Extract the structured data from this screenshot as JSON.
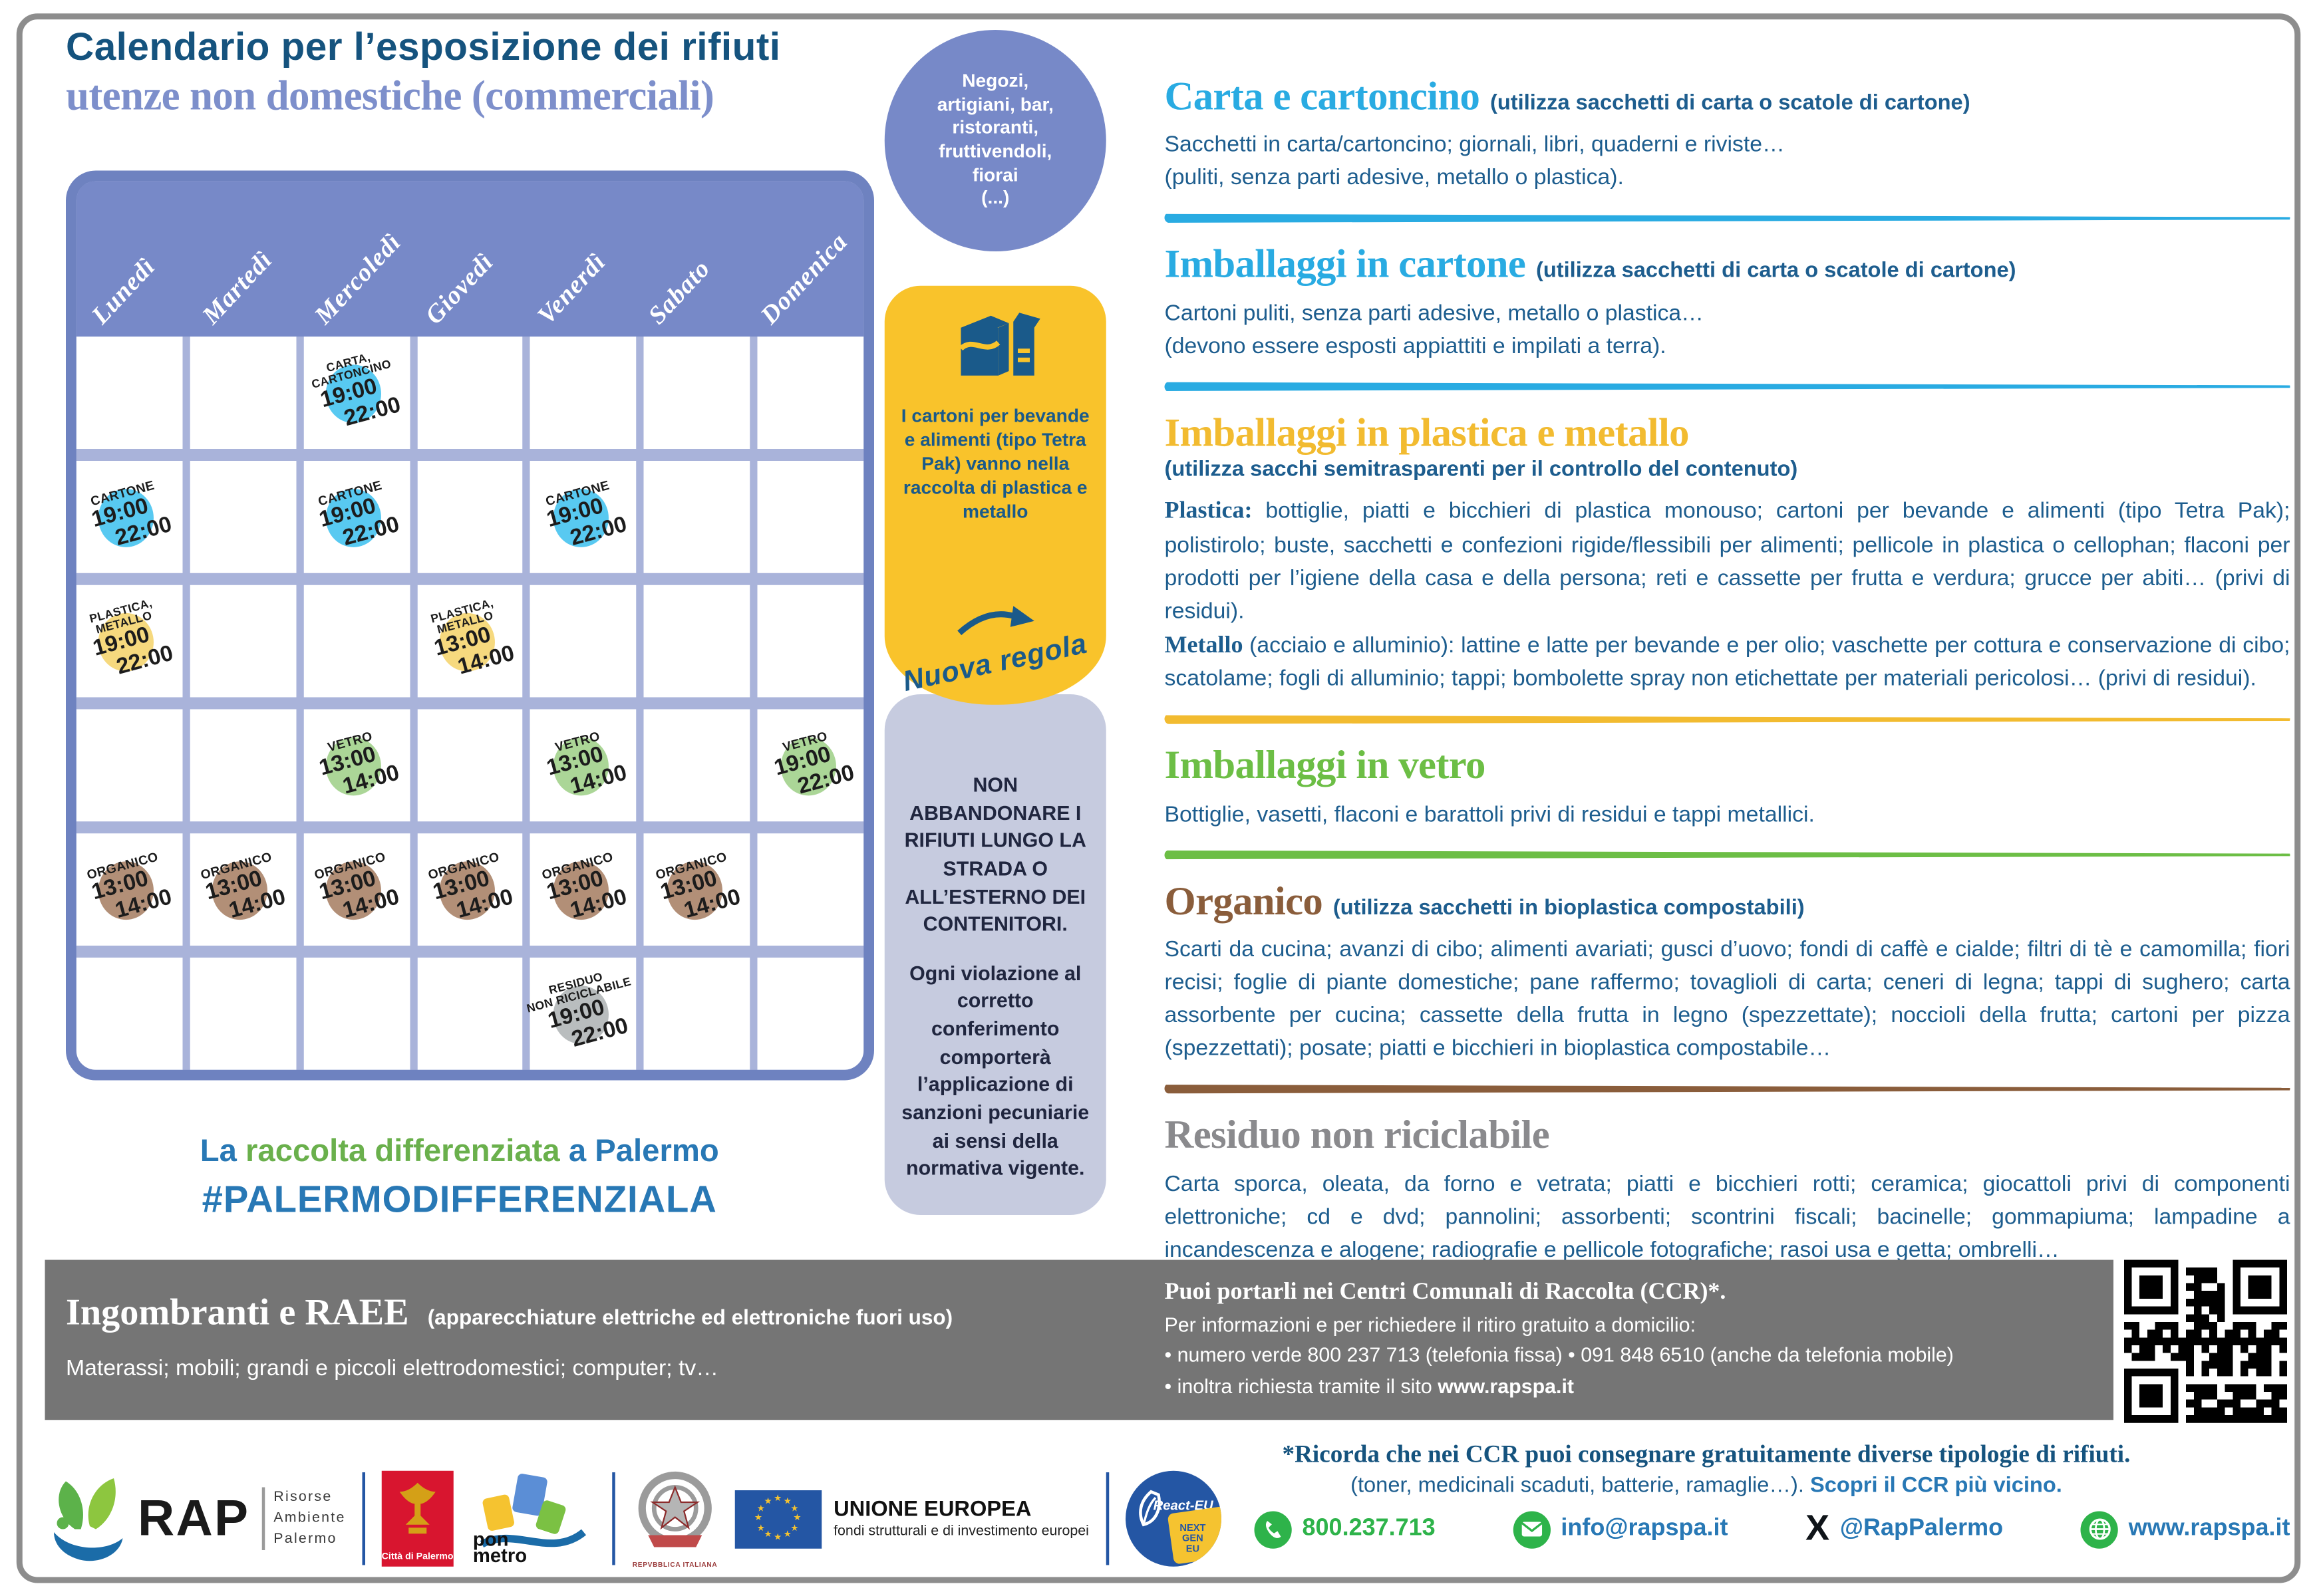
{
  "title": {
    "line1": "Calendario per l’esposizione dei rifiuti",
    "line2": "utenze non domestiche (commerciali)"
  },
  "calendar": {
    "days": [
      "Lunedì",
      "Martedì",
      "Mercoledì",
      "Giovedì",
      "Venerdì",
      "Sabato",
      "Domenica"
    ],
    "rows": [
      [
        null,
        null,
        {
          "label": "CARTA,\nCARTONCINO",
          "t1": "19:00",
          "t2": "22:00",
          "circle": "#58c9f1"
        },
        null,
        null,
        null,
        null
      ],
      [
        {
          "label": "CARTONE",
          "t1": "19:00",
          "t2": "22:00",
          "circle": "#58c9f1"
        },
        null,
        {
          "label": "CARTONE",
          "t1": "19:00",
          "t2": "22:00",
          "circle": "#58c9f1"
        },
        null,
        {
          "label": "CARTONE",
          "t1": "19:00",
          "t2": "22:00",
          "circle": "#58c9f1"
        },
        null,
        null
      ],
      [
        {
          "label": "PLASTICA,\nMETALLO",
          "t1": "19:00",
          "t2": "22:00",
          "circle": "#f6d97e"
        },
        null,
        null,
        {
          "label": "PLASTICA,\nMETALLO",
          "t1": "13:00",
          "t2": "14:00",
          "circle": "#f6d97e"
        },
        null,
        null,
        null
      ],
      [
        null,
        null,
        {
          "label": "VETRO",
          "t1": "13:00",
          "t2": "14:00",
          "circle": "#abd697"
        },
        null,
        {
          "label": "VETRO",
          "t1": "13:00",
          "t2": "14:00",
          "circle": "#abd697"
        },
        null,
        {
          "label": "VETRO",
          "t1": "19:00",
          "t2": "22:00",
          "circle": "#abd697"
        }
      ],
      [
        {
          "label": "ORGANICO",
          "t1": "13:00",
          "t2": "14:00",
          "circle": "#b28f77"
        },
        {
          "label": "ORGANICO",
          "t1": "13:00",
          "t2": "14:00",
          "circle": "#b28f77"
        },
        {
          "label": "ORGANICO",
          "t1": "13:00",
          "t2": "14:00",
          "circle": "#b28f77"
        },
        {
          "label": "ORGANICO",
          "t1": "13:00",
          "t2": "14:00",
          "circle": "#b28f77"
        },
        {
          "label": "ORGANICO",
          "t1": "13:00",
          "t2": "14:00",
          "circle": "#b28f77"
        },
        {
          "label": "ORGANICO",
          "t1": "13:00",
          "t2": "14:00",
          "circle": "#b28f77"
        },
        null
      ],
      [
        null,
        null,
        null,
        null,
        {
          "label": "RESIDUO\nNON RICICLABILE",
          "t1": "19:00",
          "t2": "22:00",
          "circle": "#b9bdbe"
        },
        null,
        null
      ]
    ],
    "tagline": {
      "pre": "La ",
      "highlight": "raccolta differenziata",
      "post": " a Palermo"
    },
    "hashtag": "#PALERMODIFFERENZIALA"
  },
  "middle": {
    "audience": "Negozi,\nartigiani, bar,\nristoranti,\nfruttivendoli,\nfiorai\n(...)",
    "tetra_text": "I cartoni per bevande e alimenti (tipo Tetra Pak) vanno nella raccolta di plastica e metallo",
    "nuova_regola": "Nuova regola",
    "warning1": "NON ABBANDONARE I RIFIUTI LUNGO LA STRADA O ALL’ESTERNO DEI CONTENITORI.",
    "warning2": "Ogni violazione al corretto conferimento comporterà l’applicazione di sanzioni pecuniarie ai sensi della normativa vigente."
  },
  "sections": [
    {
      "color": "#29abe2",
      "title": "Carta e cartoncino",
      "subtitle": "(utilizza sacchetti di carta o scatole di cartone)",
      "subtitle_inline": true,
      "justify": false,
      "body": [
        {
          "lead": null,
          "text": "Sacchetti in carta/cartoncino; giornali, libri, quaderni e riviste…\n(puliti, senza parti adesive, metallo o plastica)."
        }
      ],
      "divider": "#29abe2"
    },
    {
      "color": "#29abe2",
      "title": "Imballaggi in cartone",
      "subtitle": "(utilizza sacchetti di carta o scatole di cartone)",
      "subtitle_inline": true,
      "justify": false,
      "body": [
        {
          "lead": null,
          "text": "Cartoni puliti, senza parti adesive, metallo o plastica…\n(devono essere esposti appiattiti e impilati a terra)."
        }
      ],
      "divider": "#29abe2"
    },
    {
      "color": "#f2bb30",
      "title": "Imballaggi in plastica e metallo",
      "subtitle": "(utilizza sacchi semitrasparenti per il controllo del contenuto)",
      "subtitle_inline": false,
      "justify": true,
      "body": [
        {
          "lead": "Plastica:",
          "text": " bottiglie, piatti e bicchieri di plastica monouso; cartoni per bevande e alimenti (tipo Tetra Pak); polistirolo; buste, sacchetti e confezioni rigide/flessibili per alimenti; pellicole in plastica o cellophan; flaconi per prodotti per l’igiene della casa e della persona; reti e cassette per frutta e verdura; grucce per abiti… (privi di residui)."
        },
        {
          "lead": "Metallo",
          "text": " (acciaio e alluminio): lattine e latte per bevande e per olio; vaschette per cottura e conservazione di cibo; scatolame; fogli di alluminio; tappi; bombolette spray non etichettate per materiali pericolosi… (privi di residui)."
        }
      ],
      "divider": "#f2bb30"
    },
    {
      "color": "#6cbe45",
      "title": "Imballaggi in vetro",
      "subtitle": null,
      "subtitle_inline": false,
      "justify": false,
      "body": [
        {
          "lead": null,
          "text": "Bottiglie, vasetti, flaconi e barattoli privi di residui e tappi metallici."
        }
      ],
      "divider": "#6cbe45"
    },
    {
      "color": "#8a5d3b",
      "title": "Organico",
      "subtitle": "(utilizza sacchetti in bioplastica compostabili)",
      "subtitle_inline": true,
      "justify": true,
      "body": [
        {
          "lead": null,
          "text": "Scarti da cucina; avanzi di cibo; alimenti avariati; gusci d’uovo; fondi di caffè e cialde; filtri di tè e camomilla; fiori recisi; foglie di piante domestiche; pane raffermo; tovaglioli di carta; ceneri di legna; tappi di sughero; carta assorbente per cucina; cassette della frutta in legno (spezzettate); noccioli della frutta; cartoni per pizza (spezzettati); posate; piatti e bicchieri in bioplastica compostabile…"
        }
      ],
      "divider": "#8a5d3b"
    },
    {
      "color": "#8a8a8d",
      "title": "Residuo non riciclabile",
      "subtitle": null,
      "subtitle_inline": false,
      "justify": true,
      "body": [
        {
          "lead": null,
          "text": "Carta sporca, oleata, da forno e vetrata; piatti e bicchieri rotti; ceramica; giocattoli privi di componenti elettroniche; cd e dvd; pannolini; assorbenti; scontrini fiscali; bacinelle; gommapiuma; lampadine a incandescenza e alogene; radiografie e pellicole fotografiche; rasoi usa e getta; ombrelli…"
        }
      ],
      "divider": null
    }
  ],
  "bulky": {
    "title": "Ingombranti e RAEE",
    "subtitle": "(apparecchiature elettriche ed elettroniche fuori uso)",
    "body": "Materassi; mobili; grandi e piccoli elettrodomestici; computer; tv…",
    "ccr_title": "Puoi portarli nei Centri Comunali di Raccolta (CCR)*.",
    "ccr_line1": "Per informazioni e per richiedere il ritiro gratuito a domicilio:",
    "ccr_line2": "• numero verde 800 237 713 (telefonia fissa) • 091 848 6510 (anche da telefonia mobile)",
    "ccr_line3_pre": "• inoltra richiesta tramite il sito ",
    "ccr_line3_bold": "www.rapspa.it"
  },
  "note": {
    "line1": "*Ricorda che nei CCR puoi consegnare gratuitamente diverse tipologie di rifiuti.",
    "line2": "(toner, medicinali scaduti, batterie, ramaglie…). ",
    "line2_bold": "Scopri il CCR più vicino."
  },
  "footer": {
    "rap": {
      "name": "RAP",
      "sub": [
        "Risorse",
        "Ambiente",
        "Palermo"
      ]
    },
    "palermo_caption": "Città di Palermo",
    "pon": {
      "line1": "pon",
      "line2": "metro"
    },
    "italy_caption": "REPVBBLICA ITALIANA",
    "eu": {
      "title": "UNIONE EUROPEA",
      "subtitle": "fondi strutturali e di investimento europei"
    },
    "react": {
      "label": "React-EU",
      "next": "NEXT\nGEN\nEU"
    },
    "contacts": [
      {
        "icon": "phone",
        "label": "800.237.713",
        "green": true
      },
      {
        "icon": "mail",
        "label": "info@rapspa.it",
        "green": false
      },
      {
        "icon": "x",
        "label": "@RapPalermo",
        "green": false
      },
      {
        "icon": "globe",
        "label": "www.rapspa.it",
        "green": false
      }
    ]
  },
  "colors": {
    "accent_blue": "#2878b5",
    "dark_blue": "#15537e",
    "body_blue": "#1d5d8e",
    "periwinkle": "#7789c8",
    "cyan": "#29abe2",
    "yellow": "#f9c32b",
    "green": "#6cbe45",
    "brown": "#8a5d3b",
    "gray": "#757575",
    "contact_green": "#2eb34a"
  }
}
